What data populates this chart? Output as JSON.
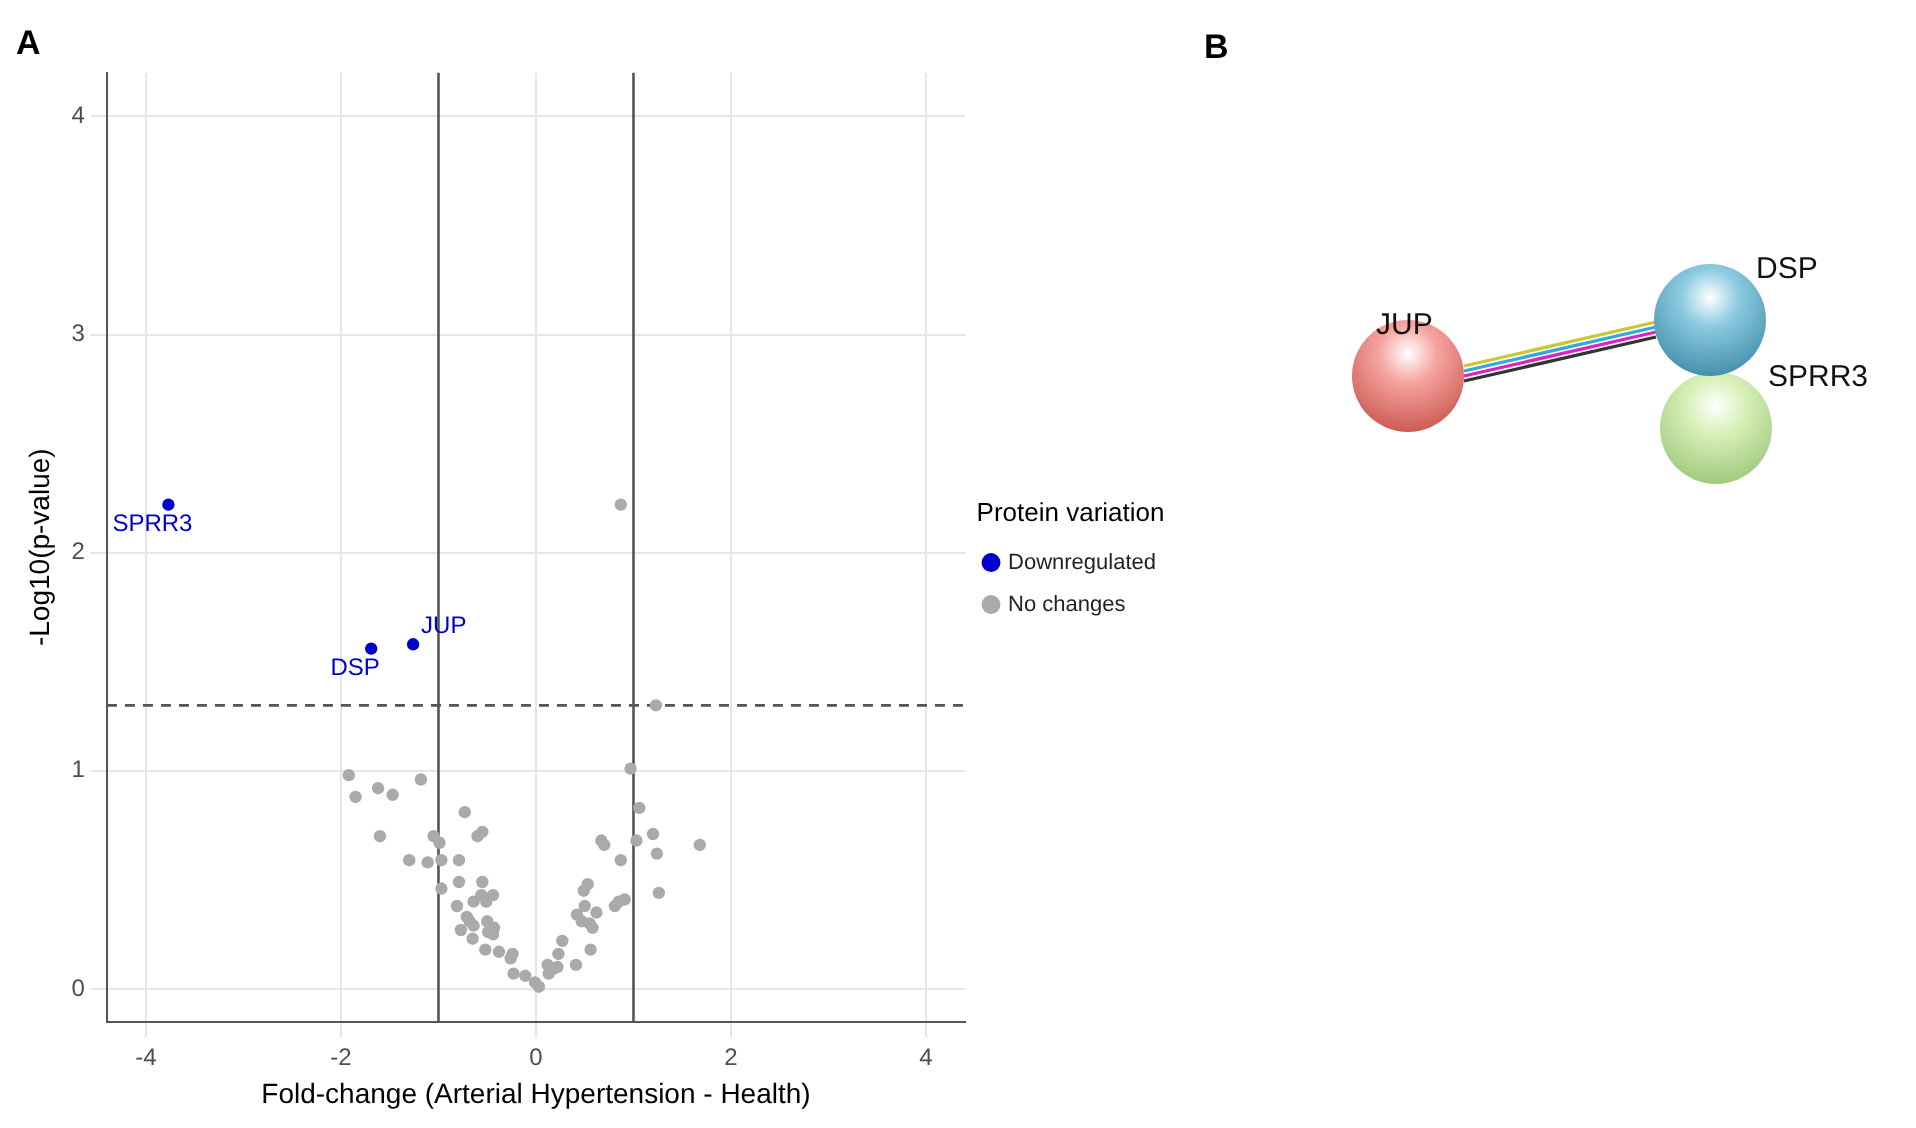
{
  "chart_data": [
    {
      "type": "scatter",
      "title": "A",
      "xlabel": "Fold-change (Arterial Hypertension - Health)",
      "ylabel": "-Log10(p-value)",
      "legend_title": "Protein variation",
      "series": [
        {
          "name": "Downregulated",
          "color": "#0000cc",
          "x": [
            -3.77,
            -1.69,
            -1.26
          ],
          "values": [
            2.22,
            1.56,
            1.58
          ]
        },
        {
          "name": "No changes",
          "color": "#aaaaaa",
          "x": [
            0.87,
            1.23,
            -1.92,
            -1.85,
            -1.62,
            -1.47,
            -1.18,
            -1.6,
            -1.05,
            -0.99,
            -0.73,
            -0.6,
            -0.55,
            -1.3,
            -1.11,
            -0.97,
            -0.79,
            -0.97,
            -0.79,
            -0.55,
            -0.81,
            -0.64,
            -0.56,
            -0.51,
            -0.44,
            -0.71,
            -0.68,
            -0.64,
            -0.5,
            -0.43,
            -0.77,
            -0.49,
            -0.44,
            -0.65,
            -0.52,
            -0.38,
            -0.24,
            -0.26,
            -0.23,
            -0.11,
            -0.01,
            0.03,
            0.12,
            0.17,
            0.22,
            0.13,
            0.23,
            0.27,
            0.41,
            0.56,
            0.47,
            0.42,
            0.55,
            0.58,
            0.5,
            0.62,
            0.49,
            0.53,
            0.67,
            0.7,
            0.87,
            0.81,
            0.85,
            0.91,
            0.97,
            1.06,
            1.03,
            1.2,
            1.24,
            1.26,
            1.68
          ],
          "values": [
            2.22,
            1.3,
            0.98,
            0.88,
            0.92,
            0.89,
            0.96,
            0.7,
            0.7,
            0.67,
            0.81,
            0.7,
            0.72,
            0.59,
            0.58,
            0.59,
            0.59,
            0.46,
            0.49,
            0.49,
            0.38,
            0.4,
            0.43,
            0.4,
            0.43,
            0.33,
            0.31,
            0.29,
            0.31,
            0.28,
            0.27,
            0.26,
            0.25,
            0.23,
            0.18,
            0.17,
            0.16,
            0.14,
            0.07,
            0.06,
            0.03,
            0.01,
            0.11,
            0.09,
            0.1,
            0.07,
            0.16,
            0.22,
            0.11,
            0.18,
            0.31,
            0.34,
            0.3,
            0.28,
            0.38,
            0.35,
            0.45,
            0.48,
            0.68,
            0.66,
            0.59,
            0.38,
            0.4,
            0.41,
            1.01,
            0.83,
            0.68,
            0.71,
            0.62,
            0.44,
            0.66
          ]
        }
      ],
      "xlim": [
        -4.4,
        4.4
      ],
      "ylim": [
        -0.15,
        4.2
      ],
      "xticks": [
        -4,
        -2,
        0,
        2,
        4
      ],
      "yticks": [
        0,
        1,
        2,
        3,
        4
      ],
      "ref_lines": [
        {
          "axis": "x",
          "value": -1,
          "color": "#555555"
        },
        {
          "axis": "x",
          "value": 1,
          "color": "#555555"
        },
        {
          "axis": "y",
          "value": 1.3,
          "line_style": "dashed",
          "color": "#555555"
        }
      ],
      "annotations": [
        {
          "text": "SPRR3",
          "x": -3.77,
          "y": 2.22
        },
        {
          "text": "DSP",
          "x": -1.69,
          "y": 1.56
        },
        {
          "text": "JUP",
          "x": -1.26,
          "y": 1.58
        }
      ],
      "grid": true,
      "legend": "right",
      "marker": "circle"
    },
    {
      "type": "other",
      "title": "B",
      "annotations": [
        "JUP",
        "DSP",
        "SPRR3"
      ]
    }
  ]
}
